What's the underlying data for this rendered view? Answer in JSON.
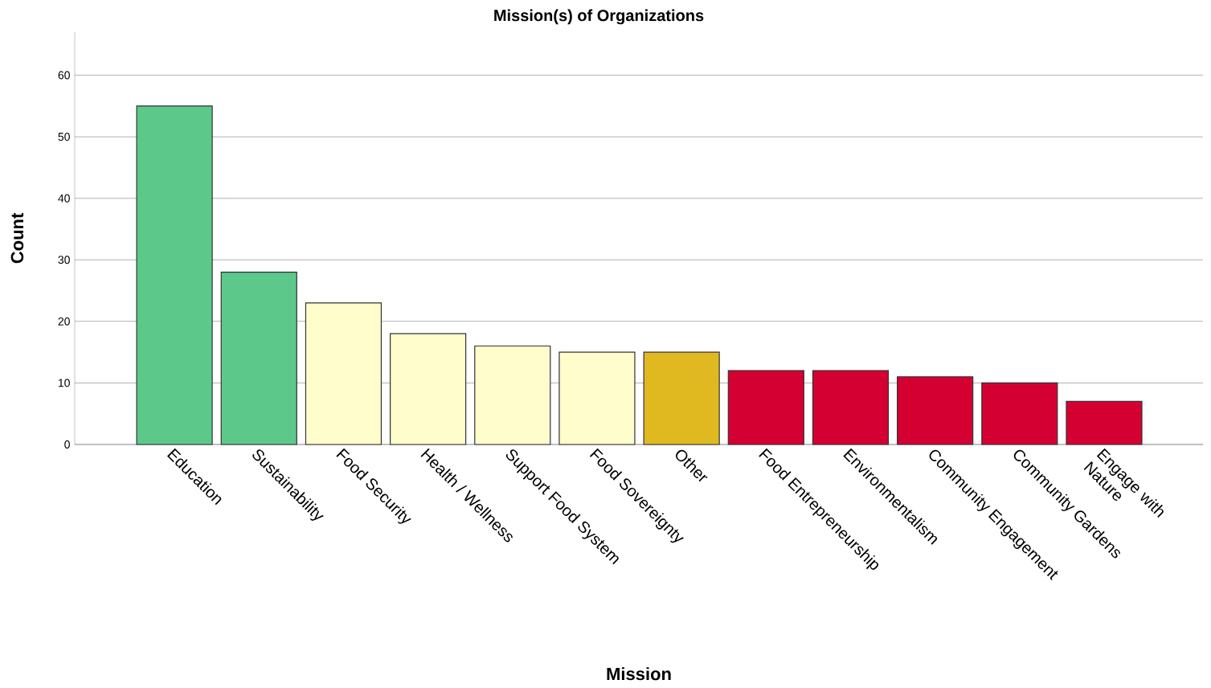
{
  "chart_data": {
    "type": "bar",
    "title": "Mission(s) of Organizations",
    "xlabel": "Mission",
    "ylabel": "Count",
    "categories": [
      "Education",
      "Sustainability",
      "Food Security",
      "Health / Wellness",
      "Support Food System",
      "Food Sovereignty",
      "Other",
      "Food Entrepreneurship",
      "Environmentalism",
      "Community Engagement",
      "Community Gardens",
      "Engage with Nature"
    ],
    "values": [
      55,
      28,
      23,
      18,
      16,
      15,
      15,
      12,
      12,
      11,
      10,
      7
    ],
    "colors": [
      "#5cc98b",
      "#5cc98b",
      "#fefdcb",
      "#fefdcb",
      "#fefdcb",
      "#fefdcb",
      "#e0b920",
      "#d50032",
      "#d50032",
      "#d50032",
      "#d50032",
      "#d50032"
    ],
    "ylim": [
      0,
      67
    ],
    "yticks": [
      0,
      10,
      20,
      30,
      40,
      50,
      60
    ],
    "grid": "y"
  }
}
